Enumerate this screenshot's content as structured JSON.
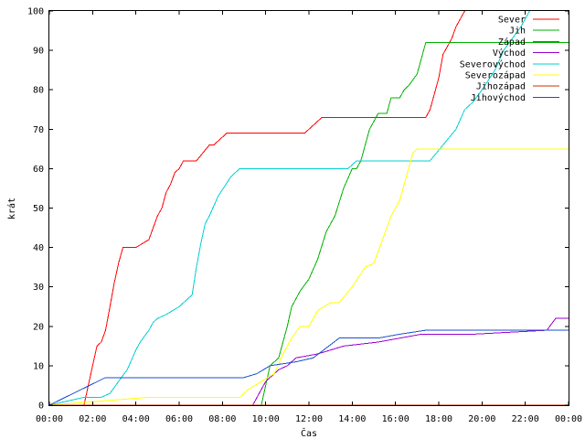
{
  "chart_data": {
    "type": "line",
    "title": "",
    "xlabel": "Čas",
    "ylabel": "krát",
    "xlim": [
      0,
      24
    ],
    "ylim": [
      0,
      100
    ],
    "x_ticks": [
      "00:00",
      "02:00",
      "04:00",
      "06:00",
      "08:00",
      "10:00",
      "12:00",
      "14:00",
      "16:00",
      "18:00",
      "20:00",
      "22:00",
      "00:00"
    ],
    "y_ticks": [
      "0",
      "10",
      "20",
      "30",
      "40",
      "50",
      "60",
      "70",
      "80",
      "90",
      "100"
    ],
    "grid": false,
    "legend_position": "top-right",
    "series": [
      {
        "name": "Sever",
        "color": "#ff0000",
        "x": [
          0,
          1.6,
          1.8,
          2.0,
          2.2,
          2.4,
          2.6,
          2.8,
          3.0,
          3.2,
          3.4,
          3.6,
          3.8,
          4.0,
          4.6,
          4.8,
          5.0,
          5.2,
          5.4,
          5.6,
          5.8,
          6.0,
          6.2,
          6.4,
          6.6,
          6.8,
          7.4,
          7.6,
          7.8,
          8.2,
          8.4,
          11.8,
          12.2,
          12.6,
          15.4,
          17.4,
          17.6,
          17.8,
          18.0,
          18.2,
          18.6,
          18.8,
          19.2
        ],
        "y": [
          0,
          0,
          5,
          10,
          15,
          16,
          19,
          25,
          31,
          36,
          40,
          40,
          40,
          40,
          42,
          45,
          48,
          50,
          54,
          56,
          59,
          60,
          62,
          62,
          62,
          62,
          66,
          66,
          67,
          69,
          69,
          69,
          71,
          73,
          73,
          73,
          75,
          79,
          83,
          89,
          93,
          96,
          100
        ]
      },
      {
        "name": "Jih",
        "color": "#00b000",
        "x": [
          0,
          9.8,
          10.2,
          10.6,
          10.8,
          11.0,
          11.2,
          11.6,
          12.0,
          12.4,
          12.8,
          13.2,
          13.6,
          14.0,
          14.2,
          14.4,
          14.8,
          15.2,
          15.6,
          15.8,
          16.0,
          16.2,
          16.4,
          16.6,
          17.0,
          17.2,
          17.4,
          17.6,
          24
        ],
        "y": [
          0,
          0,
          10,
          12,
          16,
          20,
          25,
          29,
          32,
          37,
          44,
          48,
          55,
          60,
          60,
          62,
          70,
          74,
          74,
          78,
          78,
          78,
          80,
          81,
          84,
          88,
          92,
          92,
          92
        ]
      },
      {
        "name": "Západ",
        "color": "#00a000",
        "x": [
          0,
          24
        ],
        "y": [
          0,
          0
        ]
      },
      {
        "name": "Východ",
        "color": "#9900cc",
        "x": [
          0,
          9.4,
          10.0,
          10.6,
          11.0,
          11.4,
          12.4,
          13.6,
          15.2,
          17.2,
          19.6,
          23.0,
          23.4,
          24
        ],
        "y": [
          0,
          0,
          6,
          9,
          10,
          12,
          13,
          15,
          16,
          18,
          18,
          19,
          22,
          22
        ]
      },
      {
        "name": "Severovýchod",
        "color": "#00d0d0",
        "x": [
          0,
          1.6,
          2.4,
          2.8,
          3.2,
          3.6,
          4.0,
          4.2,
          4.6,
          4.8,
          5.0,
          5.4,
          6.0,
          6.6,
          6.8,
          7.0,
          7.2,
          7.4,
          7.8,
          8.4,
          8.8,
          13.8,
          14.2,
          17.6,
          18.2,
          18.8,
          19.2,
          19.6,
          20.0,
          20.6,
          21.0,
          21.8,
          22.2
        ],
        "y": [
          0,
          2,
          2,
          3,
          6,
          9,
          14,
          16,
          19,
          21,
          22,
          23,
          25,
          28,
          35,
          41,
          46,
          48,
          53,
          58,
          60,
          60,
          62,
          62,
          66,
          70,
          75,
          77,
          80,
          85,
          90,
          96,
          100
        ]
      },
      {
        "name": "Severozápad",
        "color": "#ffff00",
        "x": [
          0,
          4.6,
          8.8,
          9.2,
          9.8,
          10.4,
          10.8,
          11.2,
          11.6,
          12.0,
          12.4,
          13.0,
          13.4,
          14.0,
          14.6,
          15.0,
          15.4,
          15.8,
          16.2,
          16.6,
          16.8,
          17.0,
          24
        ],
        "y": [
          0,
          2,
          2,
          4,
          6,
          8,
          13,
          17,
          20,
          20,
          24,
          26,
          26,
          30,
          35,
          36,
          42,
          48,
          52,
          60,
          64,
          65,
          65
        ]
      },
      {
        "name": "Jihozápad",
        "color": "#cc3300",
        "x": [
          0,
          24
        ],
        "y": [
          0,
          0
        ]
      },
      {
        "name": "Jihovýchod",
        "color": "#1a4fd0",
        "x": [
          0,
          2.6,
          4.0,
          9.0,
          9.6,
          10.2,
          11.4,
          12.2,
          13.4,
          15.2,
          16.2,
          17.4,
          24
        ],
        "y": [
          0,
          7,
          7,
          7,
          8,
          10,
          11,
          12,
          17,
          17,
          18,
          19,
          19
        ]
      }
    ]
  }
}
